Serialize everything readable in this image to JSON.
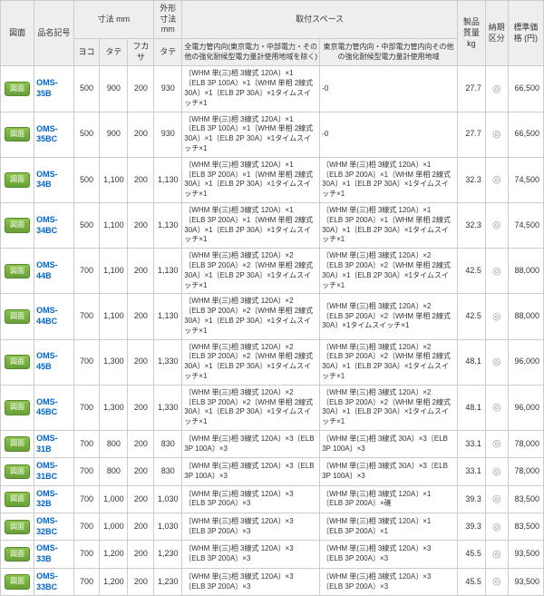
{
  "headers": {
    "h1": "図面",
    "h2": "品名記号",
    "h3": "寸法 mm",
    "h4": "外形寸法 mm",
    "h5": "取付スペース",
    "h6": "製品質量 kg",
    "h7": "納期区分",
    "h8": "標準価格 (円)",
    "s1": "ヨコ",
    "s2": "タテ",
    "s3": "フカサ",
    "s4": "タテ",
    "s5": "全電力管内向(東京電力・中部電力・その他の強化耐候型電力量計使用地域を除く)",
    "s6": "東京電力管内向・中部電力管内向その他の強化耐候型電力量計使用地域"
  },
  "btn": "図面",
  "rows": [
    {
      "pn": "OMS-35B",
      "d": [
        "500",
        "900",
        "200",
        "930"
      ],
      "sp1": "〔WHM 単(三)相 3線式 120A〕×1\n〔ELB 3P 100A〕×1〔WHM 単相 2線式 30A〕×1〔ELB 2P 30A〕×1タイムスイッチ×1",
      "sp2": "-0",
      "wt": "27.7",
      "pr": "66,500"
    },
    {
      "pn": "OMS-35BC",
      "d": [
        "500",
        "900",
        "200",
        "930"
      ],
      "sp1": "〔WHM 単(三)相 3線式 120A〕×1\n〔ELB 3P 100A〕×1〔WHM 単相 2線式 30A〕×1〔ELB 2P 30A〕×1タイムスイッチ×1",
      "sp2": "-0",
      "wt": "27.7",
      "pr": "66,500"
    },
    {
      "pn": "OMS-34B",
      "d": [
        "500",
        "1,100",
        "200",
        "1,130"
      ],
      "sp1": "〔WHM 単(三)相 3線式 120A〕×1\n〔ELB 3P 200A〕×1〔WHM 単相 2線式 30A〕×1〔ELB 2P 30A〕×1タイムスイッチ×1",
      "sp2": "〔WHM 単(三)相 3線式 120A〕×1\n〔ELB 3P 200A〕×1〔WHM 単相 2線式 30A〕×1〔ELB 2P 30A〕×1タイムスイッチ×1",
      "wt": "32.3",
      "pr": "74,500"
    },
    {
      "pn": "OMS-34BC",
      "d": [
        "500",
        "1,100",
        "200",
        "1,130"
      ],
      "sp1": "〔WHM 単(三)相 3線式 120A〕×1\n〔ELB 3P 200A〕×1〔WHM 単相 2線式 30A〕×1〔ELB 2P 30A〕×1タイムスイッチ×1",
      "sp2": "〔WHM 単(三)相 3線式 120A〕×1\n〔ELB 3P 200A〕×1〔WHM 単相 2線式 30A〕×1〔ELB 2P 30A〕×1タイムスイッチ×1",
      "wt": "32.3",
      "pr": "74,500"
    },
    {
      "pn": "OMS-44B",
      "d": [
        "700",
        "1,100",
        "200",
        "1,130"
      ],
      "sp1": "〔WHM 単(三)相 3線式 120A〕×2\n〔ELB 3P 200A〕×2〔WHM 単相 2線式 30A〕×1〔ELB 2P 30A〕×1タイムスイッチ×1",
      "sp2": "〔WHM 単(三)相 3線式 120A〕×2\n〔ELB 3P 200A〕×2〔WHM 単相 2線式 30A〕×1〔ELB 2P 30A〕×1タイムスイッチ×1",
      "wt": "42.5",
      "pr": "88,000"
    },
    {
      "pn": "OMS-44BC",
      "d": [
        "700",
        "1,100",
        "200",
        "1,130"
      ],
      "sp1": "〔WHM 単(三)相 3線式 120A〕×2\n〔ELB 3P 200A〕×2〔WHM 単相 2線式 30A〕×1〔ELB 2P 30A〕×1タイムスイッチ×1",
      "sp2": "〔WHM 単(三)相 3線式 120A〕×2\n〔ELB 3P 200A〕×2〔WHM 単相 2線式 30A〕×1タイムスイッチ×1",
      "wt": "42.5",
      "pr": "88,000"
    },
    {
      "pn": "OMS-45B",
      "d": [
        "700",
        "1,300",
        "200",
        "1,330"
      ],
      "sp1": "〔WHM 単(三)相 3線式 120A〕×2\n〔ELB 3P 200A〕×2〔WHM 単相 2線式 30A〕×1〔ELB 2P 30A〕×1タイムスイッチ×1",
      "sp2": "〔WHM 単(三)相 3線式 120A〕×2\n〔ELB 3P 200A〕×2〔WHM 単相 2線式 30A〕×1〔ELB 2P 30A〕×1タイムスイッチ×1",
      "wt": "48.1",
      "pr": "96,000"
    },
    {
      "pn": "OMS-45BC",
      "d": [
        "700",
        "1,300",
        "200",
        "1,330"
      ],
      "sp1": "〔WHM 単(三)相 3線式 120A〕×2\n〔ELB 3P 200A〕×2〔WHM 単相 2線式 30A〕×1〔ELB 2P 30A〕×1タイムスイッチ×1",
      "sp2": "〔WHM 単(三)相 3線式 120A〕×2\n〔ELB 3P 200A〕×2〔WHM 単相 2線式 30A〕×1〔ELB 2P 30A〕×1タイムスイッチ×1",
      "wt": "48.1",
      "pr": "96,000"
    },
    {
      "pn": "OMS-31B",
      "d": [
        "700",
        "800",
        "200",
        "830"
      ],
      "sp1": "〔WHM 単(三)相 3線式 120A〕×3〔ELB 3P 100A〕×3",
      "sp2": "〔WHM 単(三)相 3線式 30A〕×3〔ELB 3P 100A〕×3",
      "wt": "33.1",
      "pr": "78,000"
    },
    {
      "pn": "OMS-31BC",
      "d": [
        "700",
        "800",
        "200",
        "830"
      ],
      "sp1": "〔WHM 単(三)相 3線式 120A〕×3〔ELB 3P 100A〕×3",
      "sp2": "〔WHM 単(三)相 3線式 30A〕×3〔ELB 3P 100A〕×3",
      "wt": "33.1",
      "pr": "78,000"
    },
    {
      "pn": "OMS-32B",
      "d": [
        "700",
        "1,000",
        "200",
        "1,030"
      ],
      "sp1": "〔WHM 単(三)相 3線式 120A〕×3\n〔ELB 3P 200A〕×3",
      "sp2": "〔WHM 単(三)相 3線式 120A〕×1\n〔ELB 3P 200A〕×確",
      "wt": "39.3",
      "pr": "83,500"
    },
    {
      "pn": "OMS-32BC",
      "d": [
        "700",
        "1,000",
        "200",
        "1,030"
      ],
      "sp1": "〔WHM 単(三)相 3線式 120A〕×3\n〔ELB 3P 200A〕×3",
      "sp2": "〔WHM 単(三)相 3線式 120A〕×1\n〔ELB 3P 200A〕×1",
      "wt": "39.3",
      "pr": "83,500"
    },
    {
      "pn": "OMS-33B",
      "d": [
        "700",
        "1,200",
        "200",
        "1,230"
      ],
      "sp1": "〔WHM 単(三)相 3線式 120A〕×3\n〔ELB 3P 200A〕×3",
      "sp2": "〔WHM 単(三)相 3線式 120A〕×3\n〔ELB 3P 200A〕×3",
      "wt": "45.5",
      "pr": "93,500"
    },
    {
      "pn": "OMS-33BC",
      "d": [
        "700",
        "1,200",
        "200",
        "1,230"
      ],
      "sp1": "〔WHM 単(三)相 3線式 120A〕×3\n〔ELB 3P 200A〕×3",
      "sp2": "〔WHM 単(三)相 3線式 120A〕×3\n〔ELB 3P 200A〕×3",
      "wt": "45.5",
      "pr": "93,500"
    }
  ]
}
